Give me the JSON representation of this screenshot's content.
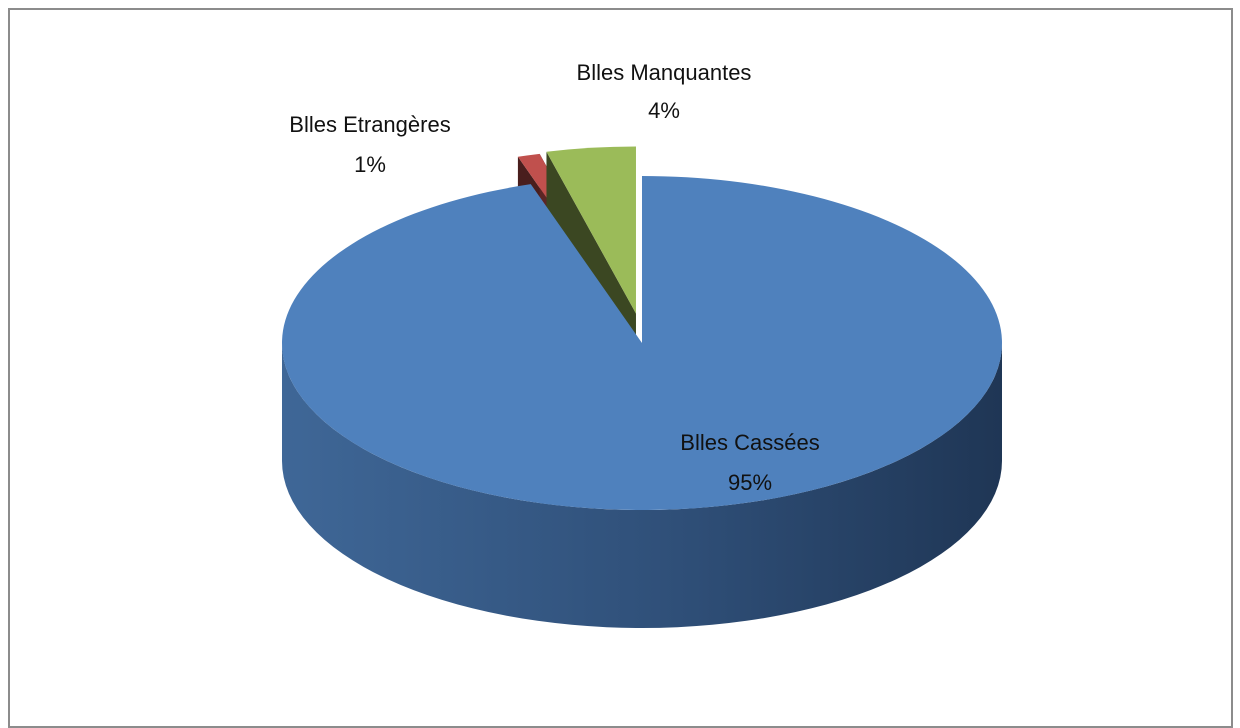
{
  "chart_data": {
    "type": "pie",
    "three_d": true,
    "exploded": true,
    "legend": "none",
    "slices": [
      {
        "label": "Blles Cassées",
        "value": 95,
        "value_label": "95%",
        "color": "#4f81bd"
      },
      {
        "label": "Blles Etrangères",
        "value": 1,
        "value_label": "1%",
        "color": "#c0504d"
      },
      {
        "label": "Blles Manquantes",
        "value": 4,
        "value_label": "4%",
        "color": "#9bbb59"
      }
    ]
  }
}
